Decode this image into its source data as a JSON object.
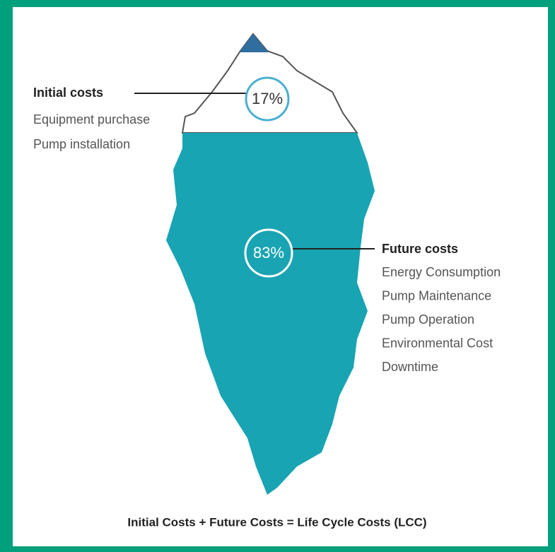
{
  "initial": {
    "title": "Initial costs",
    "percent": "17%",
    "items": [
      "Equipment purchase",
      "Pump installation"
    ]
  },
  "future": {
    "title": "Future costs",
    "percent": "83%",
    "items": [
      "Energy Consumption",
      "Pump Maintenance",
      "Pump Operation",
      "Environmental Cost",
      "Downtime"
    ]
  },
  "footer": "Initial Costs + Future Costs = Life Cycle Costs (LCC)"
}
